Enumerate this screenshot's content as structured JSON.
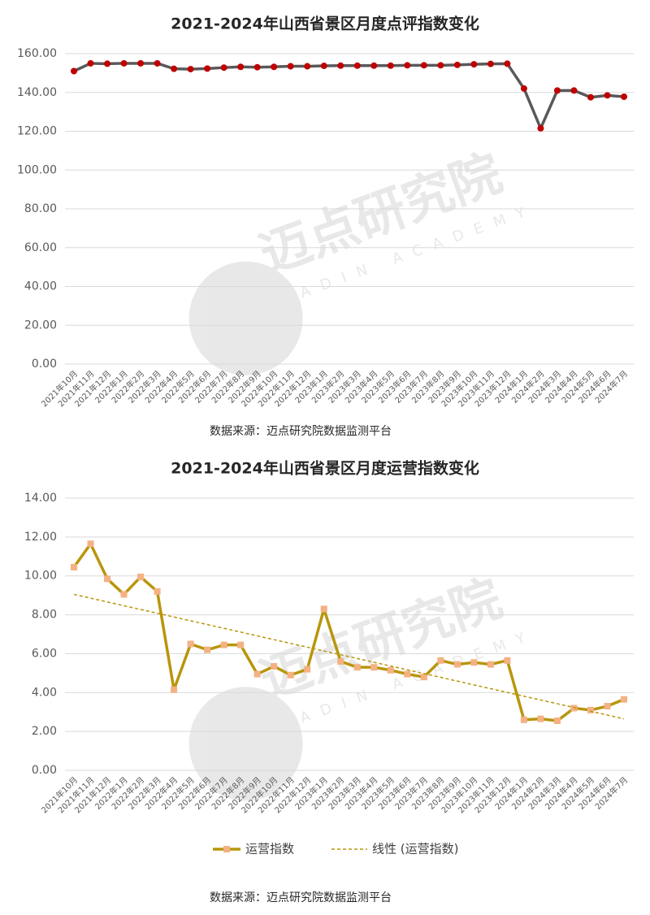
{
  "chart_data": [
    {
      "type": "line",
      "title": "2021-2024年山西省景区月度点评指数变化",
      "categories": [
        "2021年10月",
        "2021年11月",
        "2021年12月",
        "2022年1月",
        "2022年2月",
        "2022年3月",
        "2022年4月",
        "2022年5月",
        "2022年6月",
        "2022年7月",
        "2022年8月",
        "2022年9月",
        "2022年10月",
        "2022年11月",
        "2022年12月",
        "2023年1月",
        "2023年2月",
        "2023年3月",
        "2023年4月",
        "2023年5月",
        "2023年6月",
        "2023年7月",
        "2023年8月",
        "2023年9月",
        "2023年10月",
        "2023年11月",
        "2023年12月",
        "2024年1月",
        "2024年2月",
        "2024年3月",
        "2024年4月",
        "2024年5月",
        "2024年6月",
        "2024年7月"
      ],
      "series": [
        {
          "name": "点评指数",
          "color": "#c00000",
          "line_color": "#595959",
          "marker": "circle",
          "values": [
            151,
            155,
            154.8,
            155,
            155,
            155,
            152.2,
            152,
            152.3,
            152.8,
            153.2,
            153,
            153.2,
            153.5,
            153.5,
            153.7,
            153.8,
            153.8,
            153.8,
            153.8,
            154,
            154,
            154,
            154.2,
            154.5,
            154.7,
            154.8,
            142,
            121.5,
            141,
            141,
            137.5,
            138.5,
            137.8
          ]
        }
      ],
      "ylim": [
        0,
        160
      ],
      "yticks": [
        {
          "value": 0,
          "label": "0.00"
        },
        {
          "value": 20,
          "label": "20.00"
        },
        {
          "value": 40,
          "label": "40.00"
        },
        {
          "value": 60,
          "label": "60.00"
        },
        {
          "value": 80,
          "label": "80.00"
        },
        {
          "value": 100,
          "label": "100.00"
        },
        {
          "value": 120,
          "label": "120.00"
        },
        {
          "value": 140,
          "label": "140.00"
        },
        {
          "value": 160,
          "label": "160.00"
        }
      ],
      "grid": true,
      "legend": false,
      "source": "数据来源：迈点研究院数据监测平台",
      "watermark": "迈点研究院",
      "watermark_sub": "MEADIN ACADEMY"
    },
    {
      "type": "line",
      "title": "2021-2024年山西省景区月度运营指数变化",
      "categories": [
        "2021年10月",
        "2021年11月",
        "2021年12月",
        "2022年1月",
        "2022年2月",
        "2022年3月",
        "2022年4月",
        "2022年5月",
        "2022年6月",
        "2022年7月",
        "2022年8月",
        "2022年9月",
        "2022年10月",
        "2022年11月",
        "2022年12月",
        "2023年1月",
        "2023年2月",
        "2023年3月",
        "2023年4月",
        "2023年5月",
        "2023年6月",
        "2023年7月",
        "2023年8月",
        "2023年9月",
        "2023年10月",
        "2023年11月",
        "2023年12月",
        "2024年1月",
        "2024年2月",
        "2024年3月",
        "2024年4月",
        "2024年5月",
        "2024年6月",
        "2024年7月"
      ],
      "series": [
        {
          "name": "运营指数",
          "color": "#f4b183",
          "line_color": "#b8960c",
          "marker": "square",
          "values": [
            10.45,
            11.65,
            9.85,
            9.05,
            9.95,
            9.2,
            4.15,
            6.5,
            6.2,
            6.45,
            6.45,
            4.95,
            5.35,
            4.9,
            5.2,
            8.3,
            5.6,
            5.3,
            5.3,
            5.15,
            4.95,
            4.8,
            5.65,
            5.45,
            5.55,
            5.45,
            5.65,
            2.6,
            2.65,
            2.55,
            3.2,
            3.1,
            3.3,
            3.65
          ]
        }
      ],
      "trendline": {
        "name": "线性 (运营指数)",
        "color": "#b8960c",
        "values": [
          9.05,
          2.65
        ]
      },
      "ylim": [
        0,
        14
      ],
      "yticks": [
        {
          "value": 0,
          "label": "0.00"
        },
        {
          "value": 2,
          "label": "2.00"
        },
        {
          "value": 4,
          "label": "4.00"
        },
        {
          "value": 6,
          "label": "6.00"
        },
        {
          "value": 8,
          "label": "8.00"
        },
        {
          "value": 10,
          "label": "10.00"
        },
        {
          "value": 12,
          "label": "12.00"
        },
        {
          "value": 14,
          "label": "14.00"
        }
      ],
      "grid": true,
      "legend": true,
      "source": "数据来源：迈点研究院数据监测平台",
      "watermark": "迈点研究院",
      "watermark_sub": "MEADIN ACADEMY"
    }
  ]
}
